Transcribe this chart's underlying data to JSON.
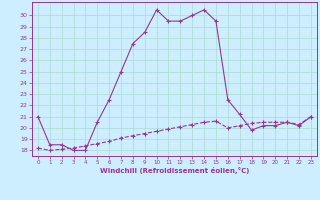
{
  "xlabel": "Windchill (Refroidissement éolien,°C)",
  "background_color": "#cceeff",
  "grid_color": "#aaddcc",
  "line_color": "#993399",
  "xlim": [
    -0.5,
    23.5
  ],
  "ylim": [
    17.5,
    31.2
  ],
  "xticks": [
    0,
    1,
    2,
    3,
    4,
    5,
    6,
    7,
    8,
    9,
    10,
    11,
    12,
    13,
    14,
    15,
    16,
    17,
    18,
    19,
    20,
    21,
    22,
    23
  ],
  "yticks": [
    18,
    19,
    20,
    21,
    22,
    23,
    24,
    25,
    26,
    27,
    28,
    29,
    30
  ],
  "line1_x": [
    0,
    1,
    2,
    3,
    4,
    5,
    6,
    7,
    8,
    9,
    10,
    11,
    12,
    13,
    14,
    15,
    16,
    17,
    18,
    19,
    20,
    21,
    22,
    23
  ],
  "line1_y": [
    21,
    18.5,
    18.5,
    18.0,
    18.0,
    20.5,
    22.5,
    25.0,
    27.5,
    28.5,
    30.5,
    29.5,
    29.5,
    30.0,
    30.5,
    29.5,
    22.5,
    21.2,
    19.8,
    20.2,
    20.2,
    20.5,
    20.2,
    21.0
  ],
  "line2_x": [
    0,
    1,
    2,
    3,
    4,
    5,
    6,
    7,
    8,
    9,
    10,
    11,
    12,
    13,
    14,
    15,
    16,
    17,
    18,
    19,
    20,
    21,
    22,
    23
  ],
  "line2_y": [
    18.2,
    18.0,
    18.1,
    18.2,
    18.4,
    18.6,
    18.8,
    19.1,
    19.3,
    19.5,
    19.7,
    19.9,
    20.1,
    20.3,
    20.5,
    20.6,
    20.0,
    20.2,
    20.4,
    20.5,
    20.5,
    20.5,
    20.3,
    21.0
  ]
}
